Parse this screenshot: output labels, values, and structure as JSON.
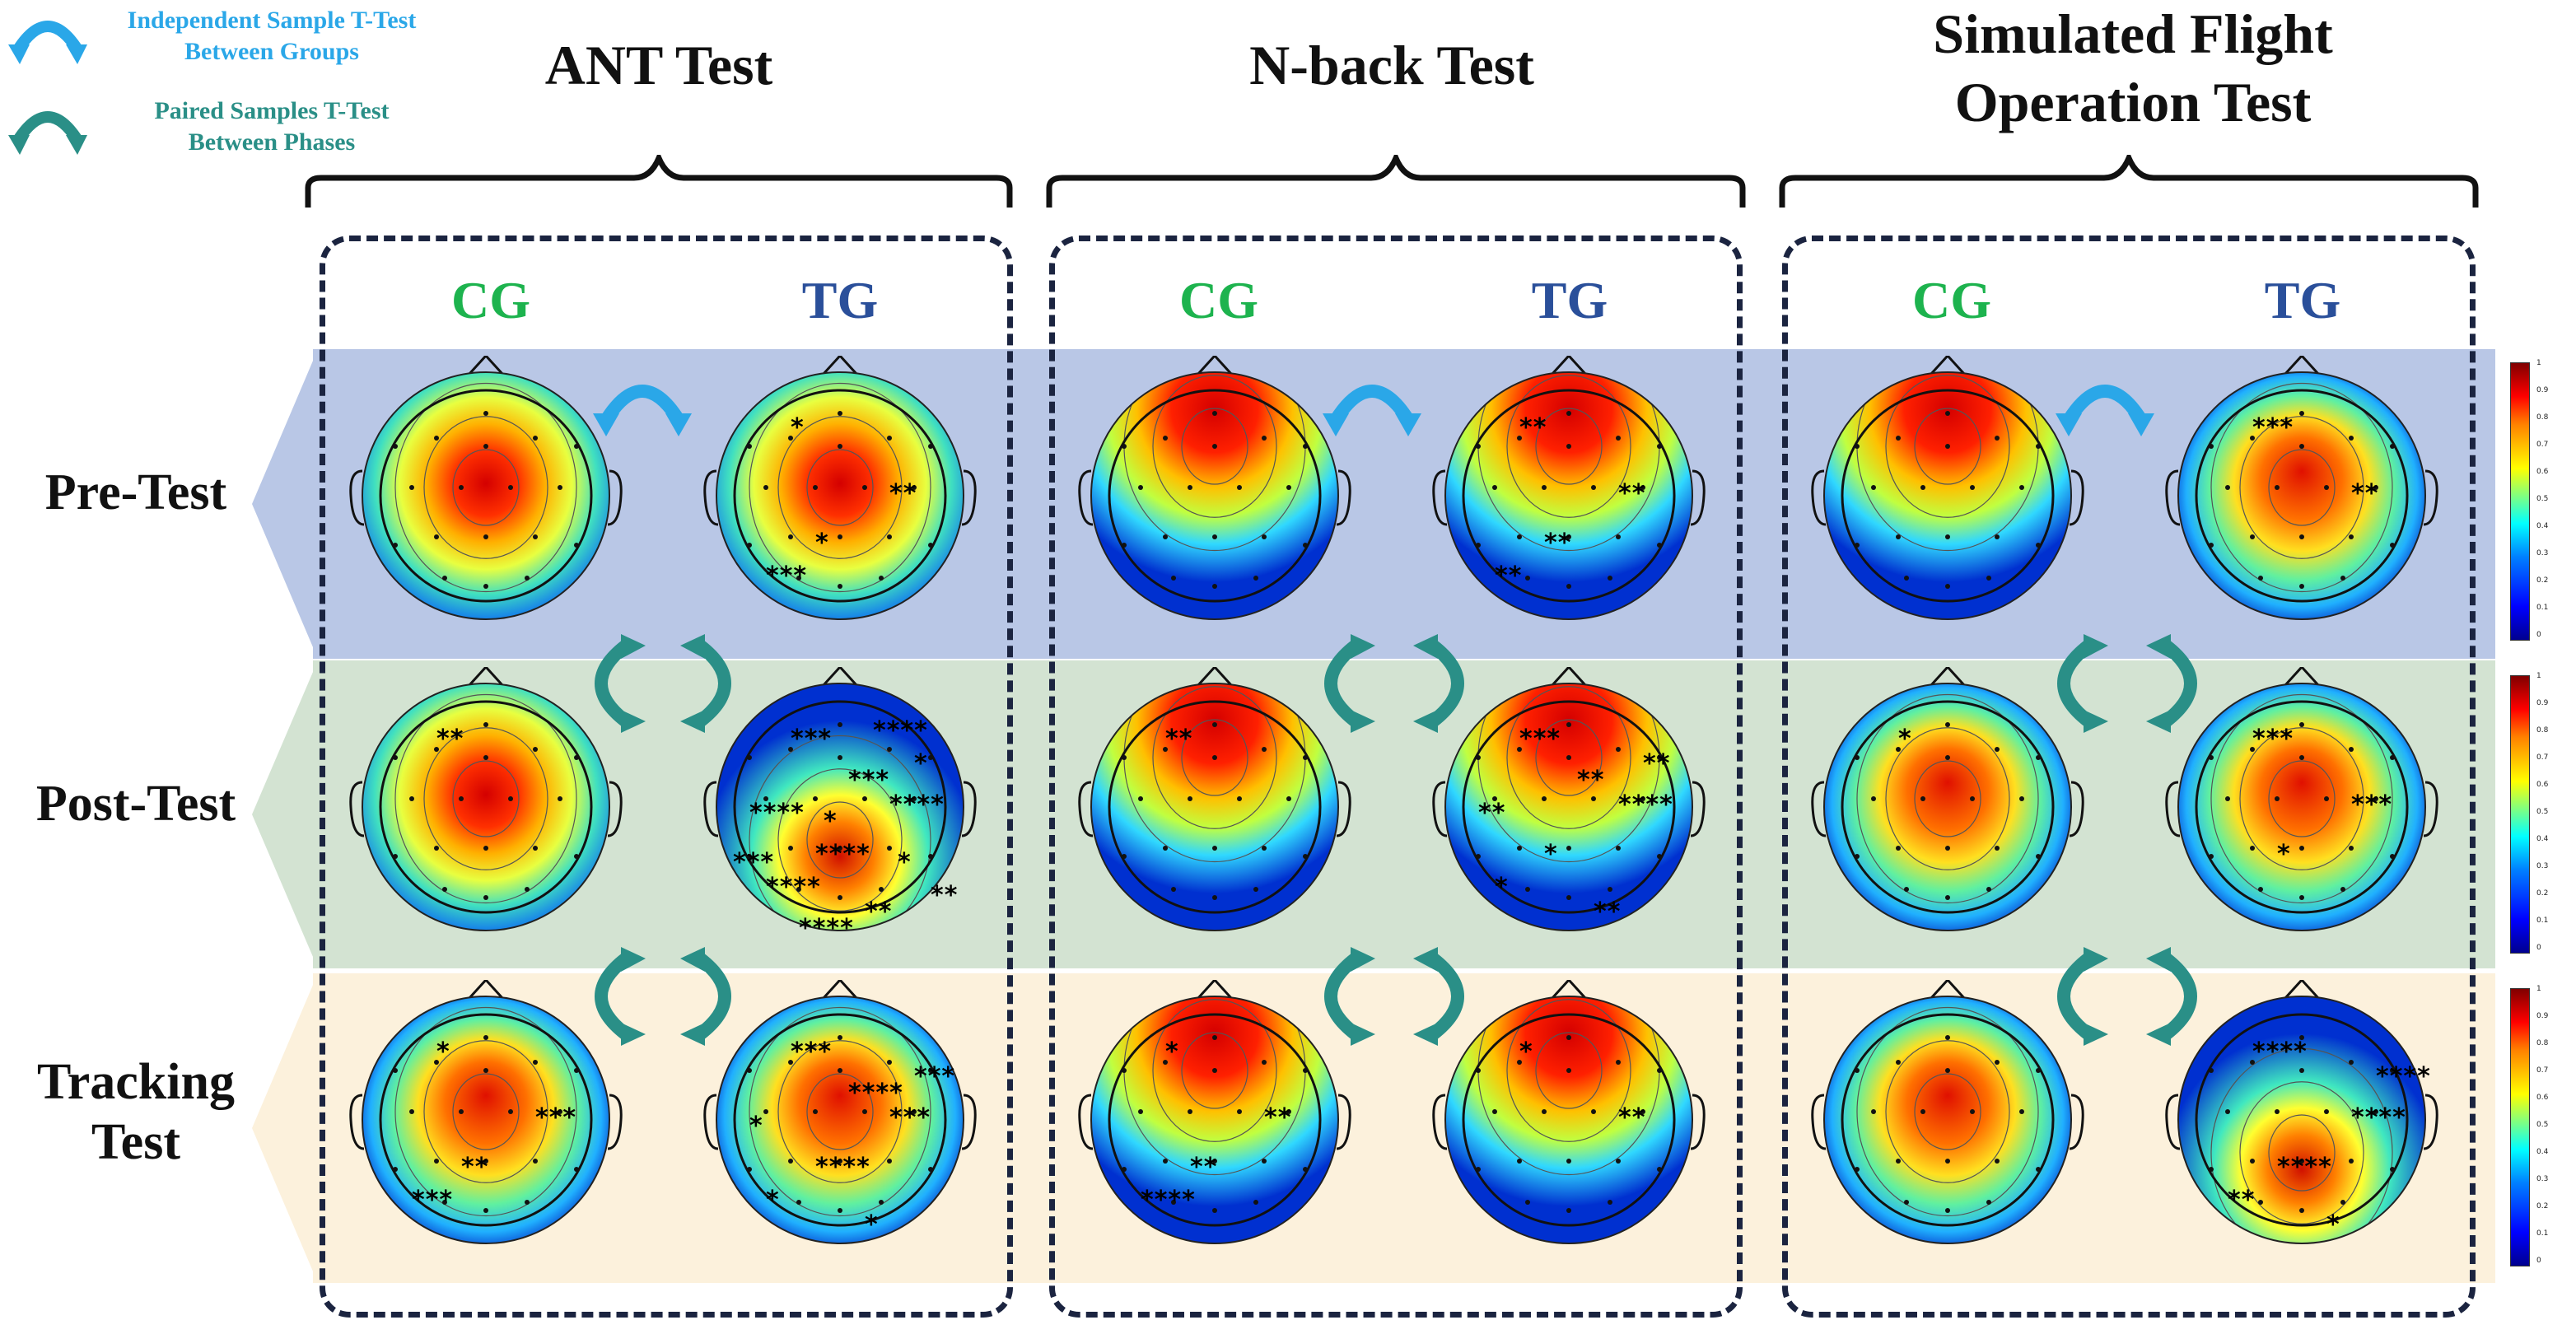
{
  "legend": {
    "between_groups": "Independent Sample T-Test\nBetween Groups",
    "between_phases": "Paired Samples T-Test\nBetween Phases",
    "colors": {
      "between_groups": "#2aa7e8",
      "between_phases": "#2a8f87"
    }
  },
  "tests": [
    {
      "title": "ANT Test"
    },
    {
      "title": "N-back Test"
    },
    {
      "title": "Simulated Flight\nOperation Test"
    }
  ],
  "groups": {
    "cg": "CG",
    "tg": "TG"
  },
  "phases": [
    {
      "label": "Pre-Test"
    },
    {
      "label": "Post-Test"
    },
    {
      "label": "Tracking\nTest"
    }
  ],
  "colorbar": {
    "ticks": [
      "1",
      "0.9",
      "0.8",
      "0.7",
      "0.6",
      "0.5",
      "0.4",
      "0.3",
      "0.2",
      "0.1",
      "0"
    ]
  },
  "maps": {
    "ant": {
      "pre": {
        "cg": {
          "stars": []
        },
        "tg": {
          "stars": [
            "*",
            "**",
            "*",
            "***"
          ]
        }
      },
      "post": {
        "cg": {
          "stars": [
            "**"
          ]
        },
        "tg": {
          "stars": [
            "***",
            "****",
            "****",
            "****",
            "**",
            "*",
            "****",
            "***",
            "*",
            "****",
            "**",
            "***",
            "*",
            "****"
          ]
        }
      },
      "track": {
        "cg": {
          "stars": [
            "*",
            "***",
            "**",
            "***"
          ]
        },
        "tg": {
          "stars": [
            "***",
            "***",
            "****",
            "*",
            "*",
            "***",
            "*",
            "****"
          ]
        }
      }
    },
    "nback": {
      "pre": {
        "cg": {
          "stars": []
        },
        "tg": {
          "stars": [
            "**",
            "**",
            "**",
            "**"
          ]
        }
      },
      "post": {
        "cg": {
          "stars": [
            "**"
          ]
        },
        "tg": {
          "stars": [
            "***",
            "****",
            "*",
            "*",
            "**",
            "**",
            "**",
            "**"
          ]
        }
      },
      "track": {
        "cg": {
          "stars": [
            "*",
            "**",
            "**",
            "****"
          ]
        },
        "tg": {
          "stars": [
            "*",
            "**"
          ]
        }
      }
    },
    "flight": {
      "pre": {
        "cg": {
          "stars": []
        },
        "tg": {
          "stars": [
            "***",
            "**"
          ]
        }
      },
      "post": {
        "cg": {
          "stars": [
            "*"
          ]
        },
        "tg": {
          "stars": [
            "***",
            "***",
            "*"
          ]
        }
      },
      "track": {
        "cg": {
          "stars": []
        },
        "tg": {
          "stars": [
            "****",
            "****",
            "****",
            "**",
            "*",
            "****"
          ]
        }
      }
    }
  }
}
